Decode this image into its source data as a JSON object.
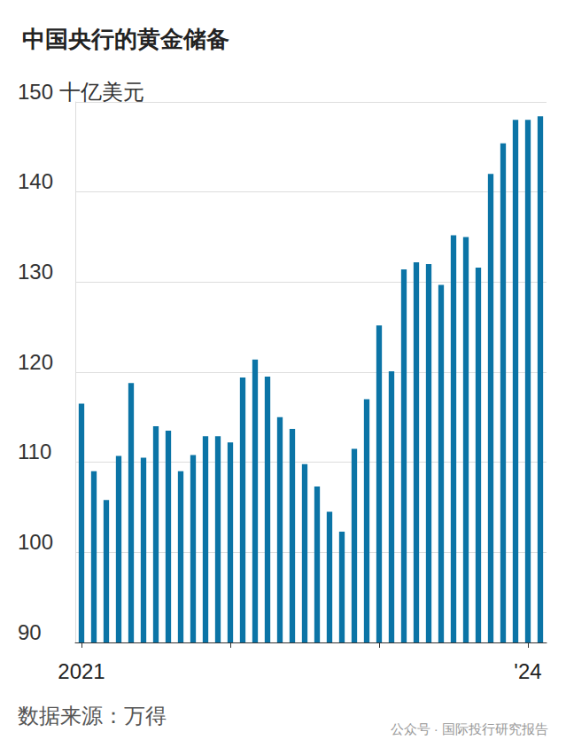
{
  "chart_data": {
    "type": "bar",
    "title": "中国央行的黄金储备",
    "source": "数据来源：万得",
    "watermark": "公众号 · 国际投行研究报告",
    "categories": [
      "2021",
      null,
      null,
      null,
      null,
      null,
      null,
      null,
      null,
      null,
      null,
      null,
      null,
      null,
      null,
      null,
      null,
      null,
      null,
      null,
      null,
      null,
      null,
      null,
      null,
      null,
      null,
      null,
      null,
      null,
      null,
      null,
      null,
      null,
      null,
      null,
      "'24",
      null
    ],
    "values": [
      116.5,
      109,
      105.8,
      110.7,
      118.8,
      110.5,
      114,
      113.5,
      109,
      110.8,
      112.9,
      112.9,
      112.2,
      119.4,
      121.4,
      119.5,
      115,
      113.7,
      109.8,
      107.3,
      104.5,
      102.3,
      111.5,
      117,
      125.2,
      120.1,
      131.4,
      132.2,
      132,
      129.7,
      135.2,
      135,
      131.6,
      142,
      145.4,
      148,
      148,
      148.4
    ],
    "color": "#0b74a6",
    "ylim": [
      90,
      150
    ],
    "yticks": [
      90,
      100,
      110,
      120,
      130,
      140,
      {
        "value": 150,
        "label": "150 十亿美元"
      }
    ],
    "grid": true
  }
}
